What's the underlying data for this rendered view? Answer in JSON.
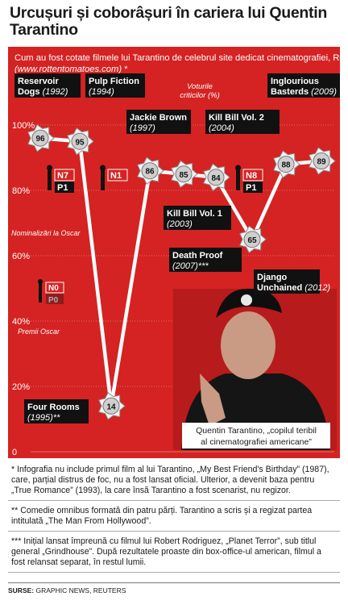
{
  "title": "Urcușuri și coborâșuri în cariera lui Quentin Tarantino",
  "subtitle_main": "Cum au fost cotate filmele lui Tarantino de celebrul site dedicat cinematografiei, Rotten Tomatoes ",
  "subtitle_link": "(www.rottentomatoes.com)",
  "subtitle_star": " *",
  "legend": {
    "critics_line1": "Voturile",
    "critics_line2": "criticilor (%)",
    "oscar_nom": "Nominalizări la Oscar",
    "oscar_win": "Premii Oscar",
    "legend_nom": "N0",
    "legend_win": "P0"
  },
  "photo_caption_line1": "Quentin Tarantino, „copilul teribil",
  "photo_caption_line2": "al cinematografiei americane”",
  "colors": {
    "background": "#d42322",
    "line": "#ffffff",
    "label_box": "#111111",
    "text_dark": "#1a1a1a"
  },
  "chart_data": {
    "type": "line",
    "ylabel": "Voturile criticilor (%)",
    "ylim": [
      0,
      100
    ],
    "yticks": [
      "0",
      "20%",
      "40%",
      "60%",
      "80%",
      "100%"
    ],
    "films": [
      {
        "name": "Reservoir Dogs",
        "year": "(1992)",
        "score": 96
      },
      {
        "name": "Pulp Fiction",
        "year": "(1994)",
        "score": 95
      },
      {
        "name": "Four Rooms",
        "year": "(1995)**",
        "score": 14
      },
      {
        "name": "Jackie Brown",
        "year": "(1997)",
        "score": 86
      },
      {
        "name": "Kill Bill Vol. 1",
        "year": "(2003)",
        "score": 85
      },
      {
        "name": "Kill Bill Vol. 2",
        "year": "(2004)",
        "score": 84
      },
      {
        "name": "Death Proof",
        "year": "(2007)***",
        "score": 65
      },
      {
        "name": "Inglourious Basterds",
        "year": "(2009)",
        "score": 88
      },
      {
        "name": "Django Unchained",
        "year": "(2012)",
        "score": 89
      }
    ],
    "oscars": [
      {
        "film": "Pulp Fiction",
        "nominations": "N7",
        "wins": "P1"
      },
      {
        "film": "Jackie Brown",
        "nominations": "N1",
        "wins": ""
      },
      {
        "film": "Inglourious Basterds",
        "nominations": "N8",
        "wins": "P1"
      }
    ]
  },
  "notes": [
    "* Infografia nu include primul film al lui Tarantino, „My Best Friend's Birthday” (1987), care, parțial distrus de foc, nu a fost lansat oficial. Ulterior, a devenit baza pentru „True Romance” (1993), la care însă Tarantino a fost scenarist, nu regizor.",
    "** Comedie omnibus formată din patru părți. Tarantino a scris și a regizat partea intitulată „The Man From Hollywood”.",
    "*** Inițial lansat împreună cu filmul lui Robert Rodriguez, „Planet Terror”, sub titlul general „Grindhouse”. După rezultatele proaste din box-office-ul american, filmul a fost relansat separat, în restul lumii."
  ],
  "source_label": "SURSE:",
  "source_text": " GRAPHIC NEWS, REUTERS"
}
